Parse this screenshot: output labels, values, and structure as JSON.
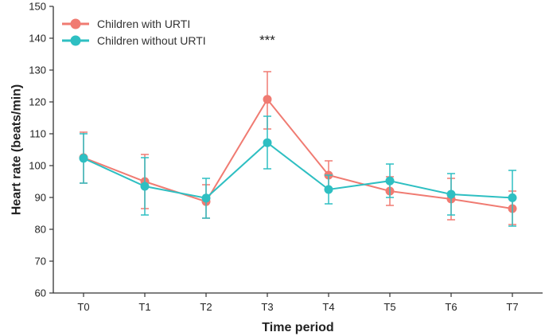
{
  "chart_data": {
    "type": "line",
    "title": "",
    "xlabel": "Time period",
    "ylabel": "Heart rate (beats/min)",
    "categories": [
      "T0",
      "T1",
      "T2",
      "T3",
      "T4",
      "T5",
      "T6",
      "T7"
    ],
    "ylim": [
      60,
      150
    ],
    "yticks": [
      60,
      70,
      80,
      90,
      100,
      110,
      120,
      130,
      140,
      150
    ],
    "grid": false,
    "legend_position": "top-left",
    "series": [
      {
        "name": "Children with URTI",
        "color": "#F07B72",
        "values": [
          102.5,
          95,
          88.7,
          120.8,
          97,
          92,
          89.5,
          86.5
        ],
        "err_low": [
          94.5,
          86.5,
          83.5,
          111.5,
          92.5,
          87.5,
          83,
          81.5
        ],
        "err_high": [
          110.5,
          103.5,
          94,
          129.5,
          101.5,
          96.5,
          96,
          92
        ]
      },
      {
        "name": "Children without URTI",
        "color": "#2EBFC2",
        "values": [
          102.3,
          93.5,
          89.8,
          107.2,
          92.5,
          95.2,
          91,
          89.9
        ],
        "err_low": [
          94.5,
          84.5,
          83.5,
          99,
          88,
          90,
          84.5,
          81
        ],
        "err_high": [
          110,
          102.5,
          96,
          115.5,
          97,
          100.5,
          97.5,
          98.5
        ]
      }
    ],
    "annotations": [
      {
        "text": "***",
        "category": "T3",
        "y": 140
      }
    ]
  }
}
